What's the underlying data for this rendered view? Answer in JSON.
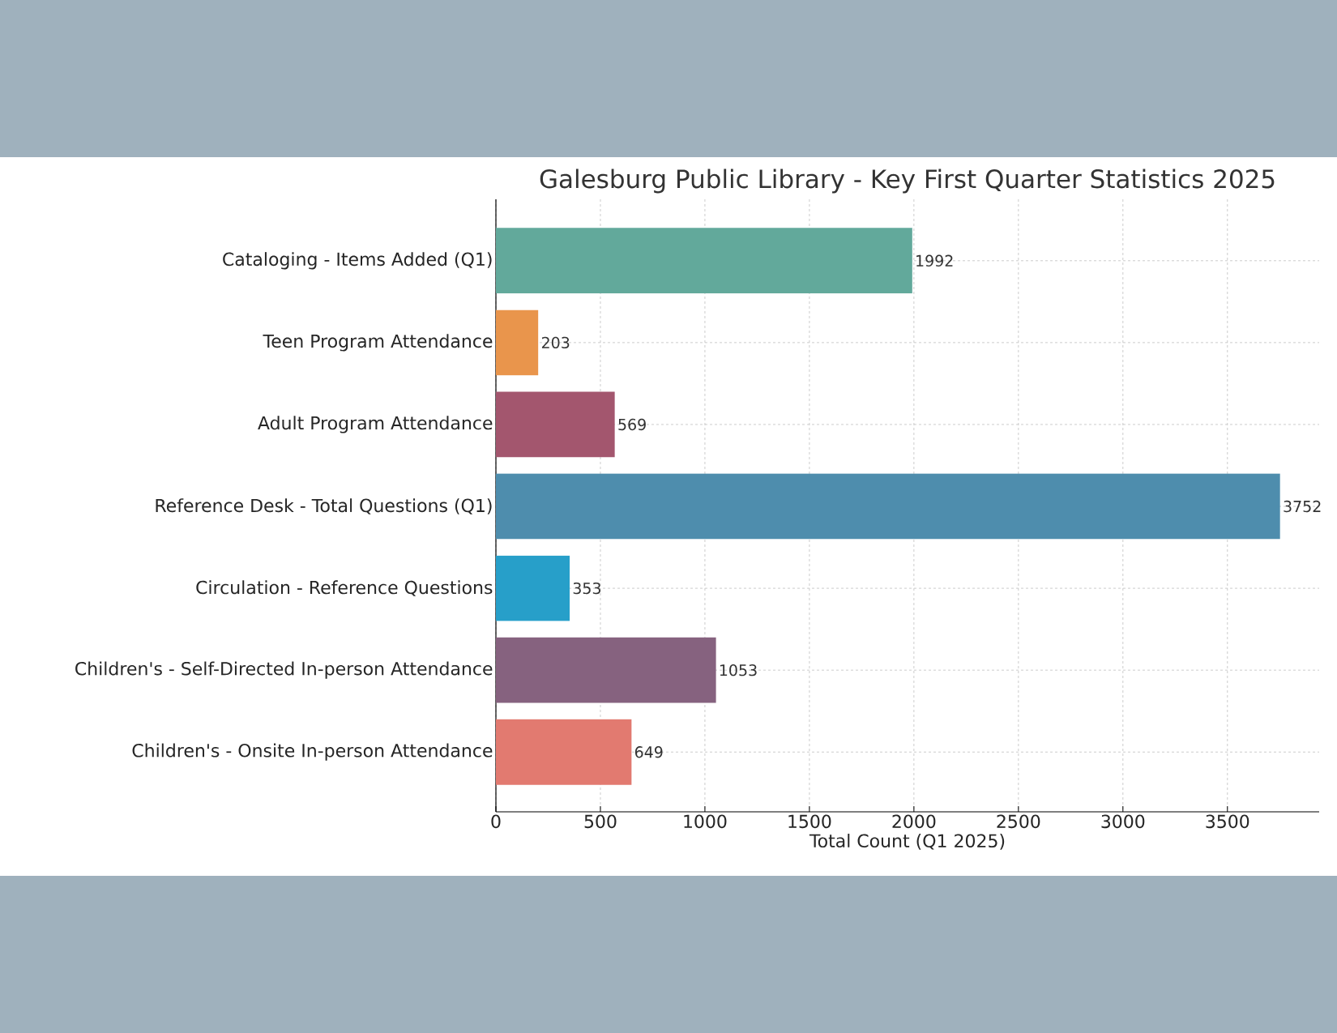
{
  "chart_data": {
    "type": "bar",
    "orientation": "horizontal",
    "title": "Galesburg Public Library - Key First Quarter Statistics 2025",
    "xlabel": "Total Count (Q1 2025)",
    "categories": [
      "Cataloging - Items Added (Q1)",
      "Teen Program Attendance",
      "Adult Program Attendance",
      "Reference Desk - Total Questions (Q1)",
      "Circulation - Reference Questions",
      "Children's - Self-Directed In-person Attendance",
      "Children's - Onsite In-person Attendance"
    ],
    "values": [
      1992,
      203,
      569,
      3752,
      353,
      1053,
      649
    ],
    "colors": [
      "#62a99b",
      "#e9954c",
      "#a3566e",
      "#4e8dad",
      "#279fc9",
      "#86627f",
      "#e27a70"
    ],
    "xlim": [
      0,
      3939
    ],
    "xticks": [
      0,
      500,
      1000,
      1500,
      2000,
      2500,
      3000,
      3500
    ],
    "grid": true,
    "data_labels": true
  }
}
